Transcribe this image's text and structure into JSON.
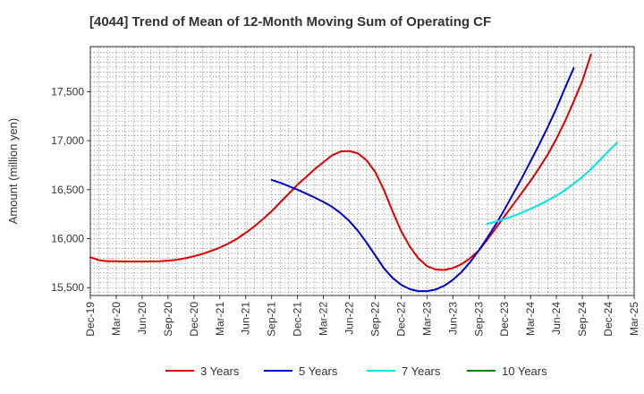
{
  "chart_data": {
    "type": "line",
    "title": "[4044]  Trend of Mean of 12-Month Moving Sum of Operating CF",
    "xlabel": "",
    "ylabel": "Amount (million yen)",
    "ylim": [
      15420,
      17960
    ],
    "yticks": [
      15500,
      16000,
      16500,
      17000,
      17500
    ],
    "ytick_labels": [
      "15,500",
      "16,000",
      "16,500",
      "17,000",
      "17,500"
    ],
    "x_categories": [
      "Dec-19",
      "Mar-20",
      "Jun-20",
      "Sep-20",
      "Dec-20",
      "Mar-21",
      "Jun-21",
      "Sep-21",
      "Dec-21",
      "Mar-22",
      "Jun-22",
      "Sep-22",
      "Dec-22",
      "Mar-23",
      "Jun-23",
      "Sep-23",
      "Dec-23",
      "Mar-24",
      "Jun-24",
      "Sep-24",
      "Dec-24",
      "Mar-25"
    ],
    "series": [
      {
        "name": "3 Years",
        "color": "#dd0000",
        "start_index": 0,
        "values": [
          15810,
          15780,
          15770,
          15770,
          15767,
          15767,
          15767,
          15768,
          15770,
          15775,
          15785,
          15800,
          15820,
          15845,
          15875,
          15910,
          15950,
          16000,
          16060,
          16125,
          16200,
          16280,
          16370,
          16460,
          16550,
          16630,
          16710,
          16780,
          16850,
          16890,
          16895,
          16870,
          16800,
          16680,
          16500,
          16280,
          16080,
          15920,
          15800,
          15720,
          15685,
          15680,
          15700,
          15740,
          15800,
          15880,
          15990,
          16110,
          16230,
          16350,
          16470,
          16590,
          16720,
          16860,
          17020,
          17200,
          17400,
          17610,
          17880
        ]
      },
      {
        "name": "5 Years",
        "color": "#0000cc",
        "start_index": 21,
        "values": [
          16600,
          16570,
          16535,
          16500,
          16460,
          16420,
          16375,
          16325,
          16260,
          16180,
          16080,
          15960,
          15830,
          15700,
          15600,
          15530,
          15485,
          15465,
          15465,
          15480,
          15520,
          15580,
          15660,
          15760,
          15880,
          16010,
          16150,
          16300,
          16460,
          16620,
          16790,
          16960,
          17140,
          17330,
          17540,
          17740
        ]
      },
      {
        "name": "7 Years",
        "color": "#00e5e5",
        "start_index": 46,
        "values": [
          16150,
          16175,
          16200,
          16230,
          16265,
          16305,
          16345,
          16390,
          16440,
          16495,
          16560,
          16630,
          16710,
          16800,
          16890,
          16980
        ]
      },
      {
        "name": "10 Years",
        "color": "#008800",
        "start_index": 0,
        "values": []
      }
    ],
    "grid": true,
    "legend": "bottom"
  }
}
